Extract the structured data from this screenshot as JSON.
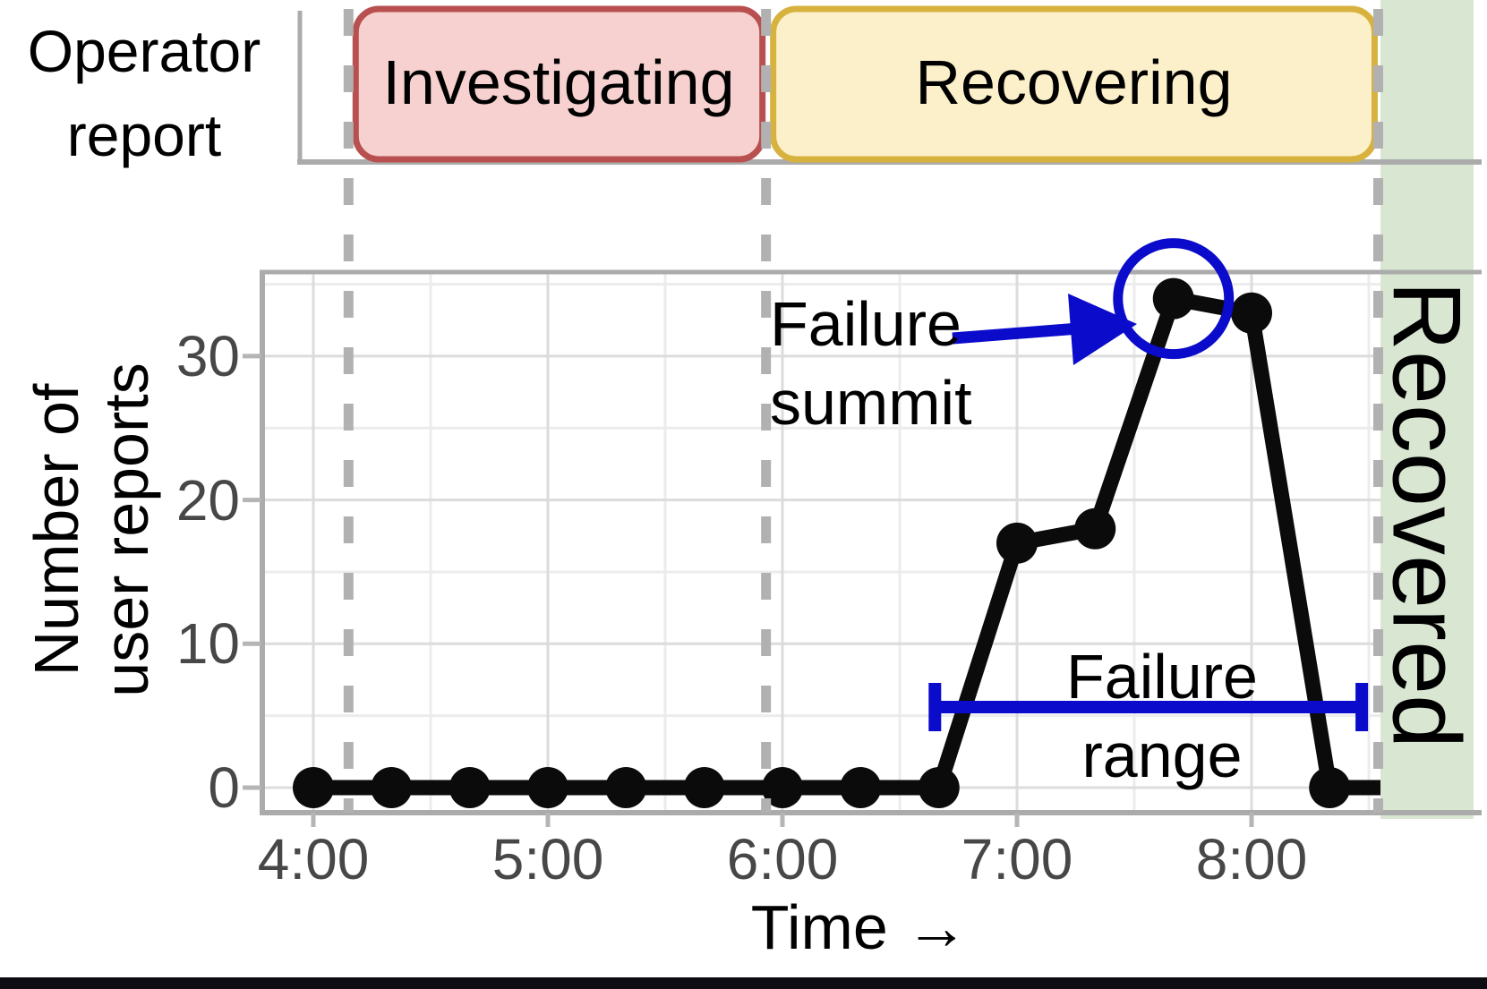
{
  "top_panel": {
    "label_lines": [
      "Operator",
      "report"
    ]
  },
  "colors": {
    "data_line": "#0b0b0b",
    "annotation_blue": "#0b0bcb",
    "grid_major": "#dcdcdc",
    "grid_minor": "#ececec",
    "axis_gray": "#ababab",
    "dashed_gray": "#b1b1b1",
    "tick_mark_gray": "#b5b5b5",
    "tick_text": "#474747",
    "text": "#000000",
    "investigating_fill": "#f6d1cf",
    "investigating_border": "#b8504f",
    "recovering_fill": "#fcf0ca",
    "recovering_border": "#d8b23e",
    "recovered_fill": "#d9e7d2",
    "bottom_bar": "#0c0c12"
  },
  "chart_data": {
    "type": "line",
    "xlabel": "Time →",
    "ylabel_lines": [
      "Number of",
      "user reports"
    ],
    "x_tick_labels": [
      "4:00",
      "5:00",
      "6:00",
      "7:00",
      "8:00"
    ],
    "x_tick_hours": [
      4,
      5,
      6,
      7,
      8
    ],
    "y_ticks": [
      0,
      10,
      20,
      30
    ],
    "xlim_hours": [
      3.78,
      8.55
    ],
    "ylim": [
      -1.7,
      35.8
    ],
    "grid": {
      "x_minor_hours": [
        4.5,
        5.5,
        6.5,
        7.5,
        8.5
      ],
      "y_minor_values": [
        5,
        15,
        25,
        35
      ]
    },
    "series": [
      {
        "name": "user reports",
        "time_labels": [
          "4:00",
          "4:20",
          "4:40",
          "5:00",
          "5:20",
          "5:40",
          "6:00",
          "6:20",
          "6:40",
          "7:00",
          "7:20",
          "7:40",
          "8:00",
          "8:20"
        ],
        "hours": [
          4,
          4.333,
          4.667,
          5,
          5.333,
          5.667,
          6,
          6.333,
          6.667,
          7,
          7.333,
          7.667,
          8,
          8.333
        ],
        "values": [
          0,
          0,
          0,
          0,
          0,
          0,
          0,
          0,
          0,
          17,
          18,
          34,
          33,
          0
        ],
        "line_extends_to_hour": 8.55
      }
    ],
    "phases": [
      {
        "label": "Investigating",
        "start_hour": 4.15,
        "end_hour": 5.93,
        "fill": "#f6d1cf",
        "border_color": "#b8504f"
      },
      {
        "label": "Recovering",
        "start_hour": 5.93,
        "end_hour": 8.54,
        "fill": "#fcf0ca",
        "border_color": "#d8b23e"
      },
      {
        "label": "Recovered",
        "start_hour": 8.54,
        "end_hour": null,
        "fill": "#d9e7d2",
        "border_color": null
      }
    ],
    "boundary_lines_hours": [
      4.15,
      5.93,
      8.54
    ],
    "annotations": {
      "failure_summit": {
        "lines": [
          "Failure",
          "summit"
        ],
        "points_to": {
          "time": "7:40",
          "value": 34
        }
      },
      "failure_range": {
        "lines": [
          "Failure",
          "range"
        ],
        "start_hour": 6.65,
        "end_hour": 8.47,
        "at_value": 5.6
      }
    }
  }
}
